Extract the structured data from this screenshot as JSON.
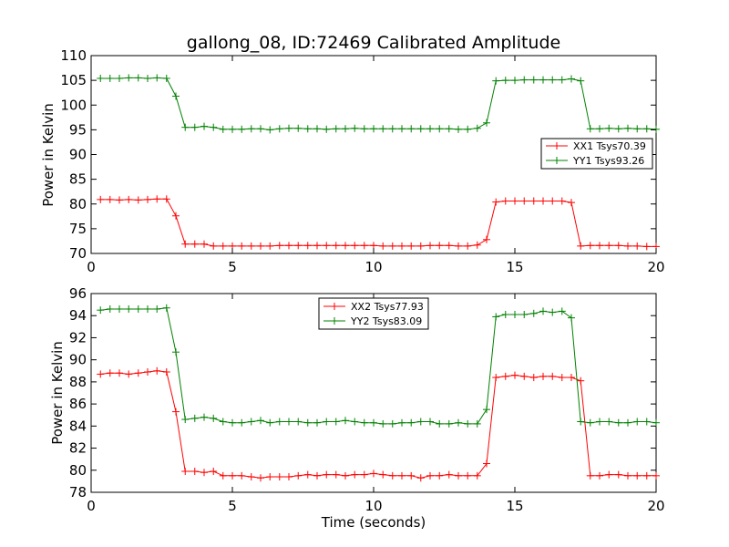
{
  "chart_data": [
    {
      "type": "line",
      "title": "gallong_08, ID:72469 Calibrated Amplitude",
      "xlabel": "",
      "ylabel": "Power in Kelvin",
      "xlim": [
        0,
        20
      ],
      "ylim": [
        70,
        110
      ],
      "xticks": [
        "0",
        "5",
        "10",
        "15",
        "20"
      ],
      "yticks": [
        "70",
        "75",
        "80",
        "85",
        "90",
        "95",
        "100",
        "105",
        "110"
      ],
      "legend_position": "center-right",
      "grid": false,
      "x": [
        0.33,
        0.67,
        1.0,
        1.33,
        1.67,
        2.0,
        2.33,
        2.67,
        3.0,
        3.33,
        3.67,
        4.0,
        4.33,
        4.67,
        5.0,
        5.33,
        5.67,
        6.0,
        6.33,
        6.67,
        7.0,
        7.33,
        7.67,
        8.0,
        8.33,
        8.67,
        9.0,
        9.33,
        9.67,
        10.0,
        10.33,
        10.67,
        11.0,
        11.33,
        11.67,
        12.0,
        12.33,
        12.67,
        13.0,
        13.33,
        13.67,
        14.0,
        14.33,
        14.67,
        15.0,
        15.33,
        15.67,
        16.0,
        16.33,
        16.67,
        17.0,
        17.33,
        17.67,
        18.0,
        18.33,
        18.67,
        19.0,
        19.33,
        19.67,
        20.0
      ],
      "series": [
        {
          "name": "XX1 Tsys70.39",
          "color": "#ff0000",
          "values": [
            80.9,
            80.9,
            80.8,
            80.9,
            80.8,
            80.9,
            81.0,
            81.0,
            77.6,
            71.9,
            71.9,
            71.9,
            71.5,
            71.5,
            71.5,
            71.5,
            71.5,
            71.5,
            71.5,
            71.6,
            71.6,
            71.6,
            71.6,
            71.6,
            71.6,
            71.6,
            71.6,
            71.6,
            71.6,
            71.6,
            71.5,
            71.5,
            71.5,
            71.5,
            71.5,
            71.6,
            71.6,
            71.6,
            71.5,
            71.5,
            71.7,
            72.8,
            80.4,
            80.6,
            80.6,
            80.6,
            80.6,
            80.6,
            80.6,
            80.6,
            80.3,
            71.5,
            71.6,
            71.6,
            71.6,
            71.6,
            71.5,
            71.5,
            71.4,
            71.4
          ]
        },
        {
          "name": "YY1 Tsys93.26",
          "color": "#008000",
          "values": [
            105.4,
            105.4,
            105.4,
            105.5,
            105.5,
            105.4,
            105.5,
            105.4,
            101.8,
            95.5,
            95.5,
            95.7,
            95.5,
            95.1,
            95.1,
            95.1,
            95.2,
            95.2,
            95.0,
            95.2,
            95.3,
            95.3,
            95.2,
            95.2,
            95.1,
            95.2,
            95.2,
            95.3,
            95.2,
            95.2,
            95.2,
            95.2,
            95.2,
            95.2,
            95.2,
            95.2,
            95.2,
            95.2,
            95.1,
            95.1,
            95.3,
            96.4,
            104.9,
            105.0,
            105.0,
            105.1,
            105.1,
            105.1,
            105.1,
            105.1,
            105.3,
            104.9,
            95.2,
            95.2,
            95.3,
            95.2,
            95.3,
            95.2,
            95.2,
            95.1
          ]
        }
      ]
    },
    {
      "type": "line",
      "title": "",
      "xlabel": "Time (seconds)",
      "ylabel": "Power in Kelvin",
      "xlim": [
        0,
        20
      ],
      "ylim": [
        78,
        96
      ],
      "xticks": [
        "0",
        "5",
        "10",
        "15",
        "20"
      ],
      "yticks": [
        "78",
        "80",
        "82",
        "84",
        "86",
        "88",
        "90",
        "92",
        "94",
        "96"
      ],
      "legend_position": "top-center",
      "grid": false,
      "x": [
        0.33,
        0.67,
        1.0,
        1.33,
        1.67,
        2.0,
        2.33,
        2.67,
        3.0,
        3.33,
        3.67,
        4.0,
        4.33,
        4.67,
        5.0,
        5.33,
        5.67,
        6.0,
        6.33,
        6.67,
        7.0,
        7.33,
        7.67,
        8.0,
        8.33,
        8.67,
        9.0,
        9.33,
        9.67,
        10.0,
        10.33,
        10.67,
        11.0,
        11.33,
        11.67,
        12.0,
        12.33,
        12.67,
        13.0,
        13.33,
        13.67,
        14.0,
        14.33,
        14.67,
        15.0,
        15.33,
        15.67,
        16.0,
        16.33,
        16.67,
        17.0,
        17.33,
        17.67,
        18.0,
        18.33,
        18.67,
        19.0,
        19.33,
        19.67,
        20.0
      ],
      "series": [
        {
          "name": "XX2 Tsys77.93",
          "color": "#ff0000",
          "values": [
            88.7,
            88.8,
            88.8,
            88.7,
            88.8,
            88.9,
            89.0,
            88.9,
            85.3,
            79.9,
            79.9,
            79.8,
            79.9,
            79.5,
            79.5,
            79.5,
            79.4,
            79.3,
            79.4,
            79.4,
            79.4,
            79.5,
            79.6,
            79.5,
            79.6,
            79.6,
            79.5,
            79.6,
            79.6,
            79.7,
            79.6,
            79.5,
            79.5,
            79.5,
            79.3,
            79.5,
            79.5,
            79.6,
            79.5,
            79.5,
            79.5,
            80.6,
            88.4,
            88.5,
            88.6,
            88.5,
            88.4,
            88.5,
            88.5,
            88.4,
            88.4,
            88.1,
            79.5,
            79.5,
            79.6,
            79.6,
            79.5,
            79.5,
            79.5,
            79.5
          ]
        },
        {
          "name": "YY2 Tsys83.09",
          "color": "#008000",
          "values": [
            94.5,
            94.6,
            94.6,
            94.6,
            94.6,
            94.6,
            94.6,
            94.7,
            90.7,
            84.6,
            84.7,
            84.8,
            84.7,
            84.4,
            84.3,
            84.3,
            84.4,
            84.5,
            84.3,
            84.4,
            84.4,
            84.4,
            84.3,
            84.3,
            84.4,
            84.4,
            84.5,
            84.4,
            84.3,
            84.3,
            84.2,
            84.2,
            84.3,
            84.3,
            84.4,
            84.4,
            84.2,
            84.2,
            84.3,
            84.2,
            84.2,
            85.5,
            93.9,
            94.1,
            94.1,
            94.1,
            94.2,
            94.4,
            94.3,
            94.4,
            93.8,
            84.4,
            84.3,
            84.4,
            84.4,
            84.3,
            84.3,
            84.4,
            84.4,
            84.3
          ]
        }
      ]
    }
  ]
}
